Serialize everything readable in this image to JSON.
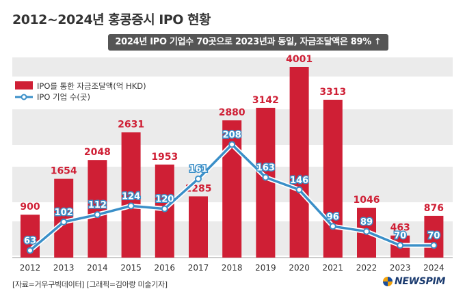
{
  "title": "2012~2024년 홍콩증시 IPO 현황",
  "banner": "2024년 IPO 기업수 70곳으로 2023년과 동일, 자금조달액은 89%",
  "banner_arrow": "↑",
  "source": "[자료=거우구빅데이터] [그래픽=김아랑 미술기자]",
  "logo": "NEWSPIM",
  "colors": {
    "bar": "#cf1f35",
    "line": "#3a8fc8",
    "band": "#ebebeb"
  },
  "chart_data": {
    "type": "bar+line",
    "categories": [
      "2012",
      "2013",
      "2014",
      "2015",
      "2016",
      "2017",
      "2018",
      "2019",
      "2020",
      "2021",
      "2022",
      "2023",
      "2024"
    ],
    "series": [
      {
        "name": "IPO를 통한 자금조달액(억 HKD)",
        "type": "bar",
        "values": [
          900,
          1654,
          2048,
          2631,
          1953,
          1285,
          2880,
          3142,
          4001,
          3313,
          1046,
          463,
          876
        ]
      },
      {
        "name": "IPO 기업 수(곳)",
        "type": "line",
        "values": [
          63,
          102,
          112,
          124,
          120,
          161,
          208,
          163,
          146,
          96,
          89,
          70,
          70
        ]
      }
    ],
    "legend": [
      "IPO를 통한 자금조달액(억 HKD)",
      "IPO 기업 수(곳)"
    ],
    "legend_position": "top-left"
  }
}
